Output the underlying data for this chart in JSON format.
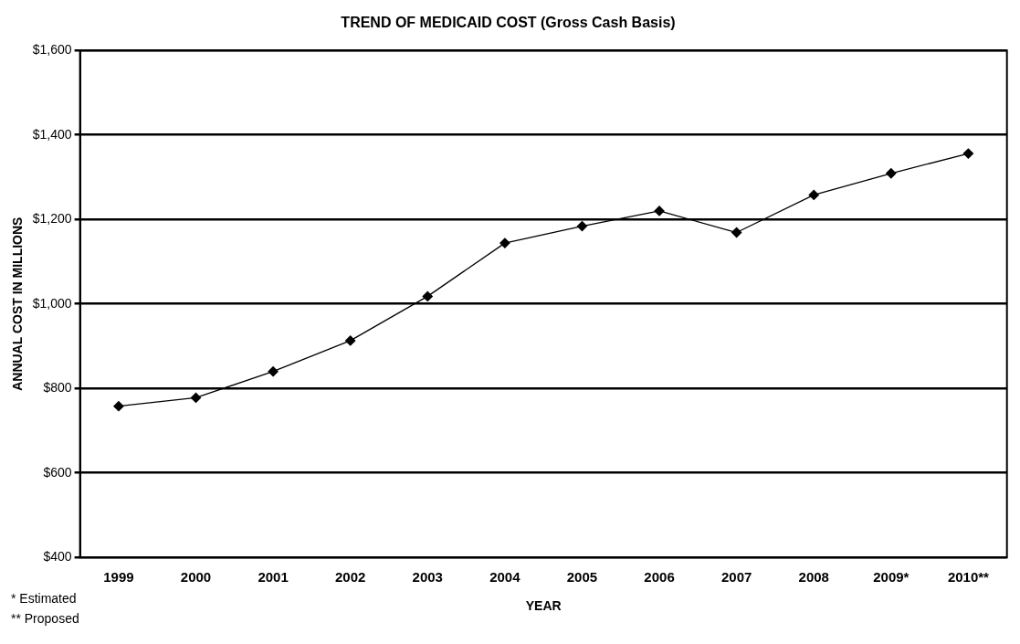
{
  "chart_data": {
    "type": "line",
    "title": "TREND OF MEDICAID COST (Gross Cash Basis)",
    "xlabel": "YEAR",
    "ylabel": "ANNUAL COST IN MILLIONS",
    "categories": [
      "1999",
      "2000",
      "2001",
      "2002",
      "2003",
      "2004",
      "2005",
      "2006",
      "2007",
      "2008",
      "2009*",
      "2010**"
    ],
    "series": [
      {
        "color": "#000000",
        "values": [
          758,
          778,
          840,
          913,
          1018,
          1144,
          1184,
          1220,
          1169,
          1258,
          1309,
          1356
        ]
      }
    ],
    "ylim": [
      400,
      1600
    ],
    "yticks": [
      {
        "value": 400,
        "label": "$400"
      },
      {
        "value": 600,
        "label": "$600"
      },
      {
        "value": 800,
        "label": "$800"
      },
      {
        "value": 1000,
        "label": "$1,000"
      },
      {
        "value": 1200,
        "label": "$1,200"
      },
      {
        "value": 1400,
        "label": "$1,400"
      },
      {
        "value": 1600,
        "label": "$1,600"
      }
    ],
    "grid": "y",
    "marker": "diamond",
    "line_style": "solid",
    "annotations": [
      "* Estimated",
      "** Proposed"
    ]
  }
}
